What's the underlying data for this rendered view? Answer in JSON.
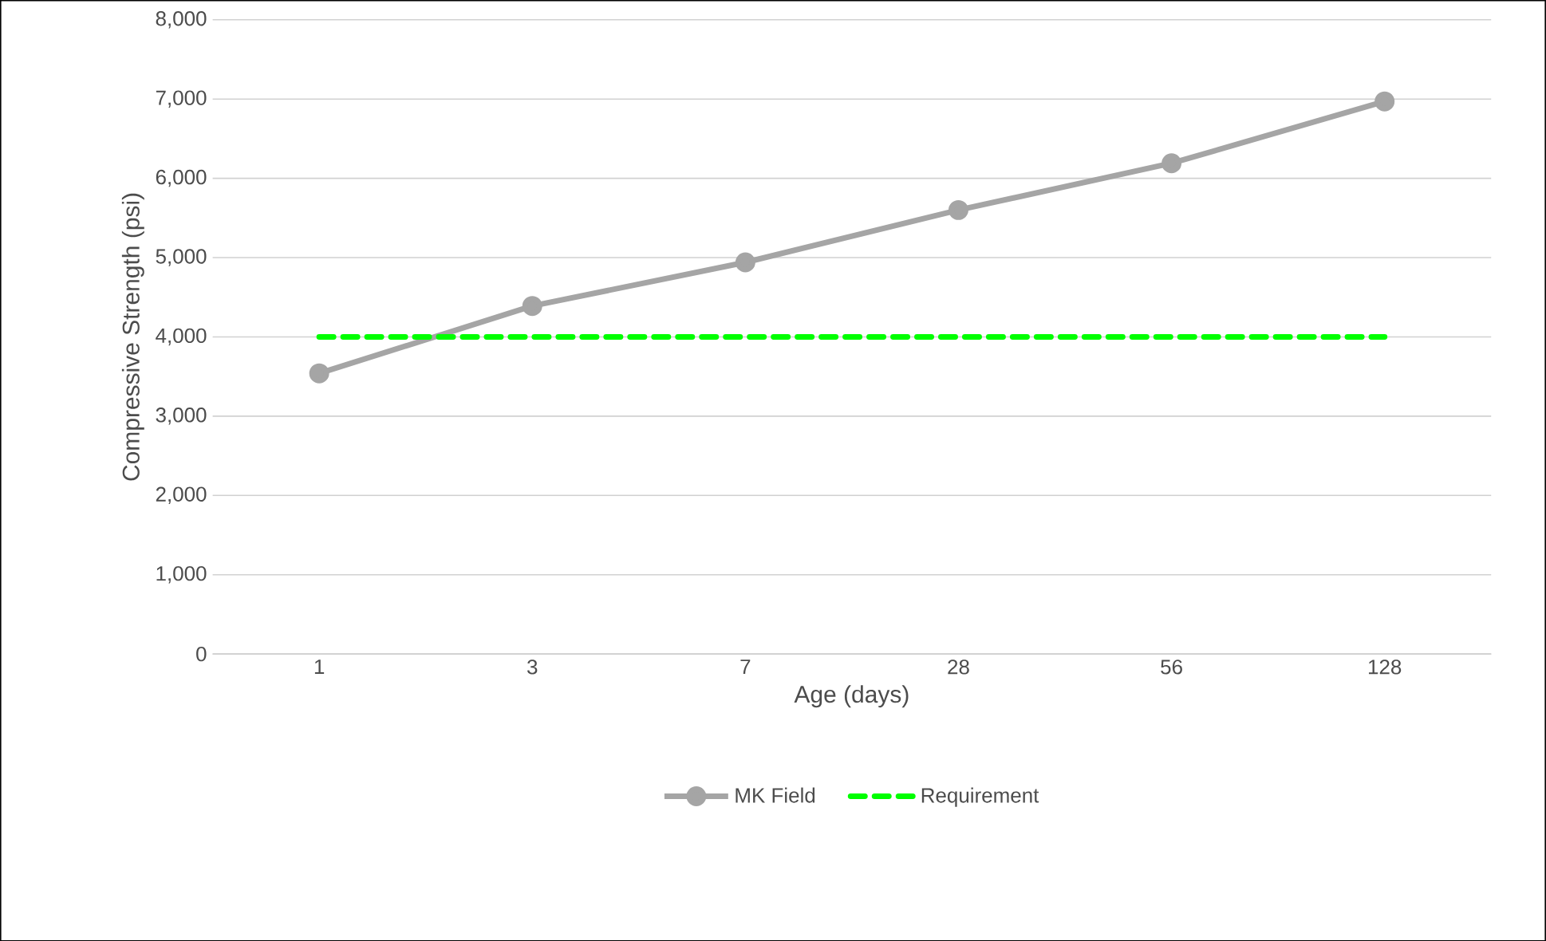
{
  "chart_data": {
    "type": "line",
    "xlabel": "Age (days)",
    "ylabel": "Compressive Strength (psi)",
    "categories": [
      "1",
      "3",
      "7",
      "28",
      "56",
      "128"
    ],
    "series": [
      {
        "name": "MK Field",
        "color": "#a5a5a5",
        "marker": "circle",
        "line_style": "solid",
        "values": [
          3540,
          4390,
          4940,
          5600,
          6190,
          6970
        ]
      },
      {
        "name": "Requirement",
        "color": "#00ff00",
        "marker": "none",
        "line_style": "dashed",
        "values": [
          4000,
          4000,
          4000,
          4000,
          4000,
          4000
        ]
      }
    ],
    "ylim": [
      0,
      8000
    ],
    "yticks": [
      {
        "value": 0,
        "label": "0"
      },
      {
        "value": 1000,
        "label": "1,000"
      },
      {
        "value": 2000,
        "label": "2,000"
      },
      {
        "value": 3000,
        "label": "3,000"
      },
      {
        "value": 4000,
        "label": "4,000"
      },
      {
        "value": 5000,
        "label": "5,000"
      },
      {
        "value": 6000,
        "label": "6,000"
      },
      {
        "value": 7000,
        "label": "7,000"
      },
      {
        "value": 8000,
        "label": "8,000"
      }
    ],
    "grid": "y",
    "legend": "bottom"
  }
}
